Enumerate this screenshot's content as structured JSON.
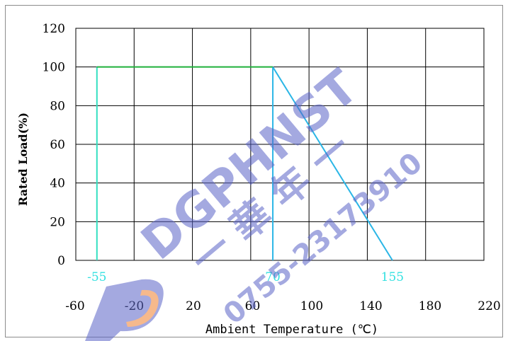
{
  "chart_data": {
    "type": "line",
    "title": "",
    "xlabel": "Ambient Temperature (℃)",
    "ylabel": "Rated Load(%)",
    "xlim": [
      -70,
      220
    ],
    "ylim": [
      0,
      120
    ],
    "x_ticks": [
      -60,
      -20,
      20,
      60,
      100,
      140,
      180,
      220
    ],
    "y_ticks": [
      0,
      20,
      40,
      60,
      80,
      100,
      120
    ],
    "grid": true,
    "series": [
      {
        "color": "#1fb03a",
        "points": [
          [
            -55,
            100
          ],
          [
            70,
            100
          ]
        ]
      },
      {
        "color": "#2bb6e6",
        "points": [
          [
            70,
            100
          ],
          [
            155,
            0
          ]
        ]
      }
    ],
    "verticals": [
      {
        "x": -55,
        "color": "#33e0c0"
      },
      {
        "x": 70,
        "color": "#2bb6e6"
      }
    ],
    "annotations": [
      {
        "x": -55,
        "text": "-55"
      },
      {
        "x": 70,
        "text": "70"
      },
      {
        "x": 155,
        "text": "155"
      }
    ]
  },
  "watermark": {
    "brand": "DGPHNST",
    "chinese": "一 華 年 一",
    "phone": "0755-23173910",
    "colors": {
      "blue": "#5a64c8",
      "orange": "#f08030"
    }
  }
}
